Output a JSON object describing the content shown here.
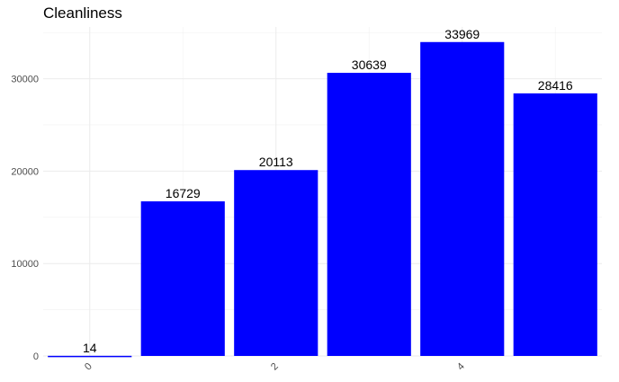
{
  "chart_data": {
    "type": "bar",
    "title": "Cleanliness",
    "xlabel": "",
    "ylabel": "",
    "x": [
      0,
      1,
      2,
      3,
      4,
      5
    ],
    "values": [
      14,
      16729,
      20113,
      30639,
      33969,
      28416
    ],
    "data_labels": [
      "14",
      "16729",
      "20113",
      "30639",
      "33969",
      "28416"
    ],
    "x_ticks": [
      0,
      2,
      4
    ],
    "x_tick_labels": [
      "0",
      "2",
      "4"
    ],
    "y_ticks": [
      0,
      10000,
      20000,
      30000
    ],
    "y_tick_labels": [
      "0",
      "10000",
      "20000",
      "30000"
    ],
    "ylim": [
      0,
      35600
    ],
    "xlim": [
      -0.5,
      5.5
    ],
    "bar_color": "#0000ff",
    "grid": true,
    "legend": "none",
    "theme": "minimal"
  }
}
